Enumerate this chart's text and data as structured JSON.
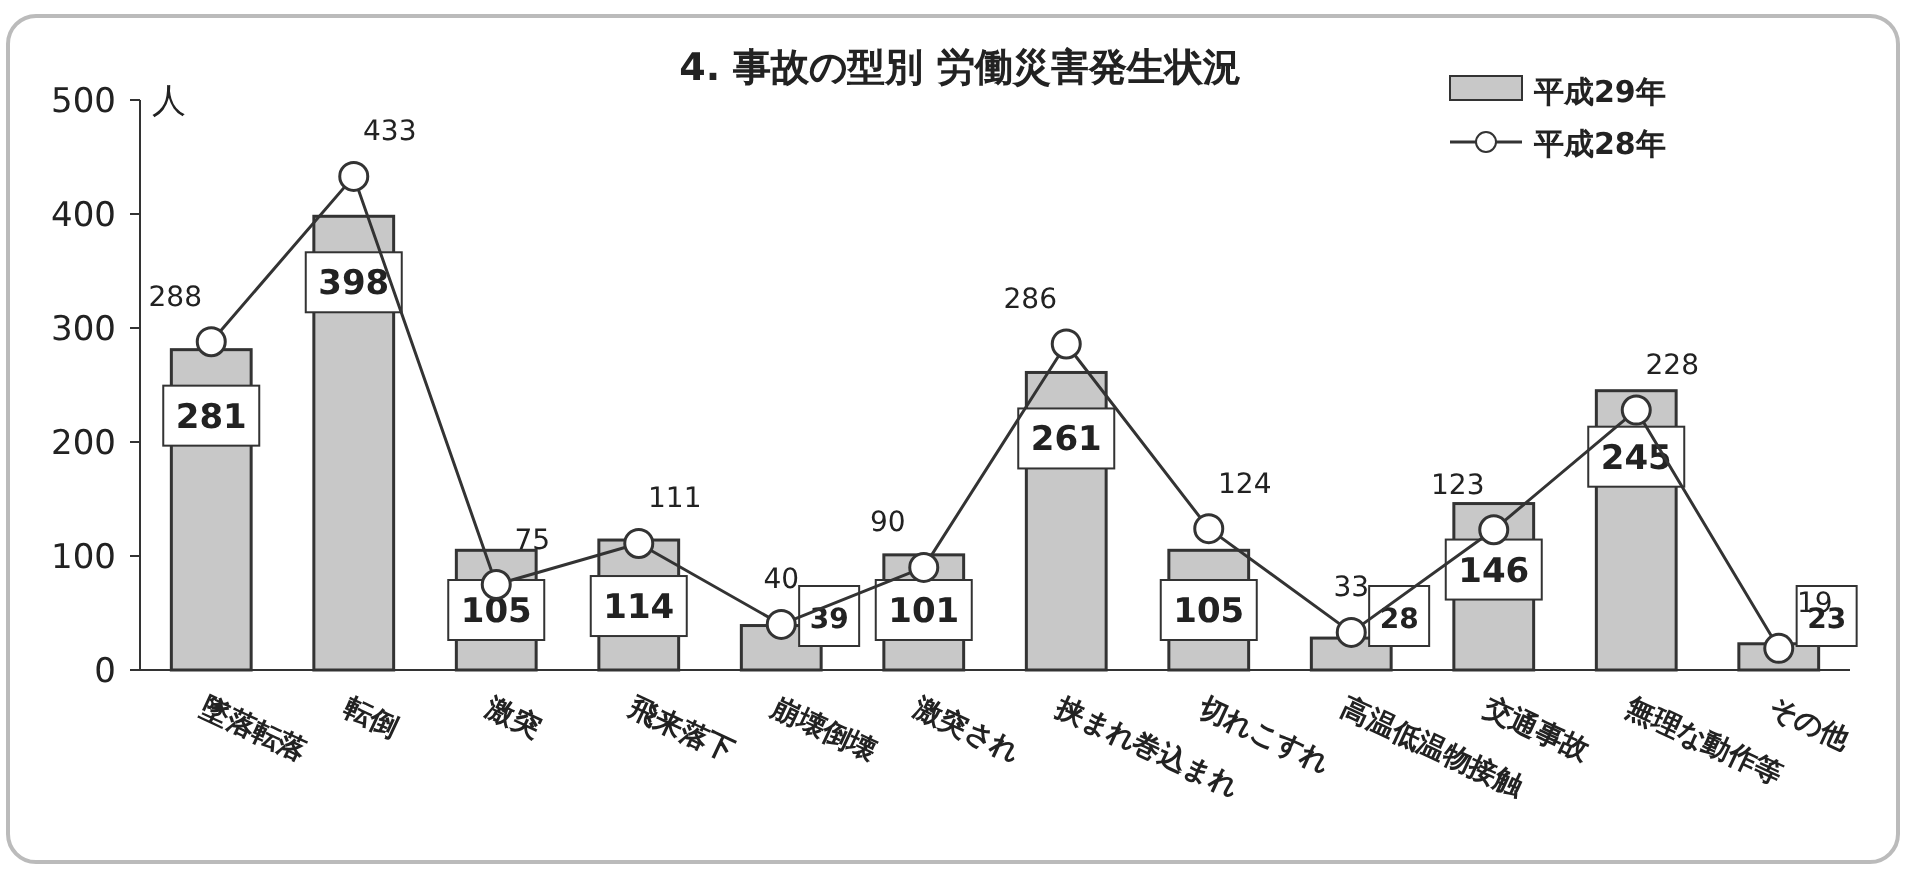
{
  "chart_data": {
    "type": "bar",
    "title": "4. 事故の型別 労働災害発生状況",
    "ylabel": "人",
    "categories": [
      "墜落転落",
      "転倒",
      "激突",
      "飛来落下",
      "崩壊倒壊",
      "激突され",
      "挟まれ巻込まれ",
      "切れこすれ",
      "高温低温物接触",
      "交通事故",
      "無理な動作等",
      "その他"
    ],
    "series": [
      {
        "name": "平成29年",
        "color": "#c8c8c8",
        "values": [
          281,
          398,
          105,
          114,
          39,
          101,
          261,
          105,
          28,
          146,
          245,
          23
        ]
      },
      {
        "name": "平成28年",
        "type": "line",
        "color": "#333333",
        "marker": "circle",
        "values": [
          288,
          433,
          75,
          111,
          40,
          90,
          286,
          124,
          33,
          123,
          228,
          19
        ]
      }
    ],
    "ylim": [
      0,
      500
    ],
    "yticks": [
      0,
      100,
      200,
      300,
      400,
      500
    ],
    "data_labels": true,
    "legend": "top right",
    "grid": false
  }
}
